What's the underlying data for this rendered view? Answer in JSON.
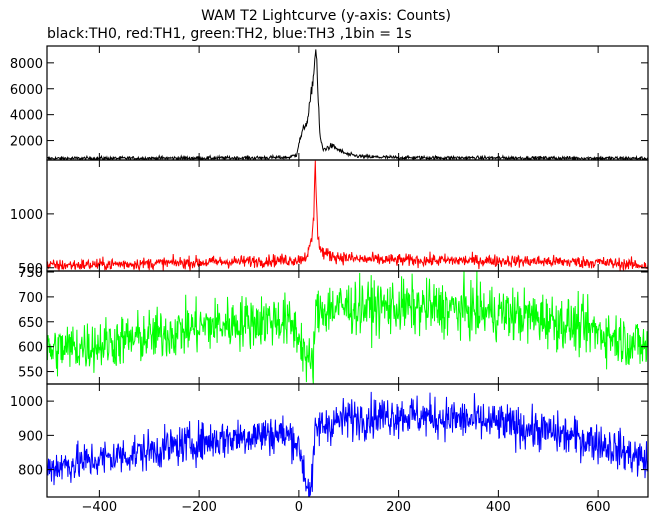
{
  "chart_data": {
    "type": "line",
    "title": "WAM T2 Lightcurve (y-axis: Counts)",
    "subtitle": "black:TH0, red:TH1, green:TH2, blue:TH3 ,1bin = 1s",
    "xlim": [
      -505,
      700
    ],
    "x_ticks": [
      -400,
      -200,
      0,
      200,
      400,
      600
    ],
    "x_tick_labels": [
      "−400",
      "−200",
      "0",
      "200",
      "400",
      "600"
    ],
    "grid": false,
    "panels": [
      {
        "name": "TH0",
        "color": "#000000",
        "ylim": [
          500,
          9300
        ],
        "y_ticks": [
          2000,
          4000,
          6000,
          8000
        ],
        "profile": {
          "x": [
            -505,
            -300,
            -100,
            -20,
            -5,
            0,
            10,
            18,
            22,
            26,
            30,
            34,
            36,
            38,
            42,
            48,
            55,
            65,
            75,
            85,
            100,
            130,
            200,
            400,
            600,
            700
          ],
          "y": [
            620,
            640,
            660,
            700,
            900,
            1800,
            3000,
            3600,
            4800,
            6000,
            7200,
            9200,
            8200,
            5800,
            2500,
            1300,
            1400,
            1600,
            1400,
            1150,
            900,
            750,
            680,
            660,
            640,
            620
          ]
        },
        "noise": 70
      },
      {
        "name": "TH1",
        "color": "#ff0000",
        "ylim": [
          470,
          1500
        ],
        "y_ticks": [
          500,
          1000
        ],
        "profile": {
          "x": [
            -505,
            -300,
            -100,
            0,
            12,
            20,
            26,
            30,
            33,
            35,
            38,
            42,
            48,
            60,
            80,
            120,
            200,
            400,
            600,
            700
          ],
          "y": [
            520,
            540,
            560,
            575,
            600,
            650,
            760,
            1000,
            1450,
            1200,
            820,
            680,
            640,
            620,
            600,
            580,
            570,
            565,
            550,
            520
          ]
        },
        "noise": 28
      },
      {
        "name": "TH2",
        "color": "#00ff00",
        "ylim": [
          525,
          752
        ],
        "y_ticks": [
          550,
          600,
          650,
          700,
          750
        ],
        "profile": {
          "x": [
            -505,
            -400,
            -300,
            -200,
            -100,
            -40,
            -10,
            5,
            15,
            28,
            33,
            40,
            60,
            100,
            200,
            300,
            400,
            500,
            600,
            700
          ],
          "y": [
            592,
            605,
            620,
            640,
            650,
            655,
            640,
            610,
            575,
            560,
            655,
            672,
            678,
            680,
            680,
            676,
            668,
            655,
            630,
            598
          ]
        },
        "noise": 26
      },
      {
        "name": "TH3",
        "color": "#0000ff",
        "ylim": [
          720,
          1050
        ],
        "y_ticks": [
          800,
          900,
          1000
        ],
        "profile": {
          "x": [
            -505,
            -400,
            -300,
            -200,
            -100,
            -40,
            -10,
            5,
            15,
            25,
            33,
            40,
            60,
            100,
            200,
            300,
            400,
            500,
            600,
            700
          ],
          "y": [
            805,
            830,
            855,
            880,
            900,
            905,
            895,
            840,
            760,
            735,
            905,
            925,
            935,
            950,
            960,
            950,
            935,
            910,
            880,
            825
          ]
        },
        "noise": 28
      }
    ]
  }
}
